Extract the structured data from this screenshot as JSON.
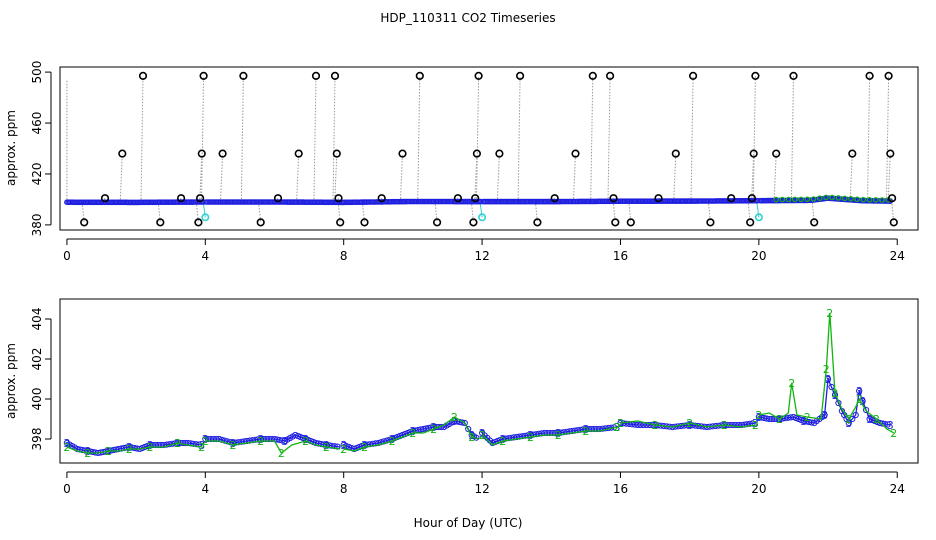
{
  "figure": {
    "title": "HDP_110311  CO2 Timeseries",
    "xlabel": "Hour of Day (UTC)"
  },
  "colors": {
    "frame": "#000000",
    "outlier_marker": "#000000",
    "series_blue": "#1f1fe0",
    "series_green": "#11b511",
    "series_cyan": "#33d0d0",
    "connector": "#9a9a9a"
  },
  "chart_data": [
    {
      "type": "scatter",
      "panel": "top",
      "ylabel": "approx. ppm",
      "xlim": [
        -0.2,
        24.6
      ],
      "ylim": [
        376,
        504
      ],
      "xticks": [
        0,
        4,
        8,
        12,
        16,
        20,
        24
      ],
      "yticks": [
        380,
        420,
        460,
        500
      ],
      "grid": false,
      "baseline": [
        {
          "x": 0,
          "y": 397.8
        },
        {
          "x": 2,
          "y": 397.7
        },
        {
          "x": 4,
          "y": 398.0
        },
        {
          "x": 6,
          "y": 398.0
        },
        {
          "x": 8,
          "y": 397.7
        },
        {
          "x": 10,
          "y": 398.4
        },
        {
          "x": 12,
          "y": 398.3
        },
        {
          "x": 14,
          "y": 398.3
        },
        {
          "x": 16,
          "y": 398.6
        },
        {
          "x": 18,
          "y": 398.7
        },
        {
          "x": 20,
          "y": 399.0
        },
        {
          "x": 21.5,
          "y": 399.3
        },
        {
          "x": 22,
          "y": 401.0
        },
        {
          "x": 23,
          "y": 399.0
        },
        {
          "x": 23.8,
          "y": 398.7
        }
      ],
      "outliers": [
        {
          "x": 0.5,
          "y": 382
        },
        {
          "x": 1.1,
          "y": 401
        },
        {
          "x": 1.6,
          "y": 436
        },
        {
          "x": 2.2,
          "y": 497
        },
        {
          "x": 2.7,
          "y": 382
        },
        {
          "x": 3.3,
          "y": 401
        },
        {
          "x": 3.8,
          "y": 382
        },
        {
          "x": 3.85,
          "y": 401
        },
        {
          "x": 3.9,
          "y": 436
        },
        {
          "x": 3.95,
          "y": 497
        },
        {
          "x": 4.5,
          "y": 436
        },
        {
          "x": 5.1,
          "y": 497
        },
        {
          "x": 5.6,
          "y": 382
        },
        {
          "x": 6.1,
          "y": 401
        },
        {
          "x": 6.7,
          "y": 436
        },
        {
          "x": 7.2,
          "y": 497
        },
        {
          "x": 7.75,
          "y": 497
        },
        {
          "x": 7.8,
          "y": 436
        },
        {
          "x": 7.85,
          "y": 401
        },
        {
          "x": 7.9,
          "y": 382
        },
        {
          "x": 8.6,
          "y": 382
        },
        {
          "x": 9.1,
          "y": 401
        },
        {
          "x": 9.7,
          "y": 436
        },
        {
          "x": 10.2,
          "y": 497
        },
        {
          "x": 10.7,
          "y": 382
        },
        {
          "x": 11.3,
          "y": 401
        },
        {
          "x": 11.75,
          "y": 382
        },
        {
          "x": 11.8,
          "y": 401
        },
        {
          "x": 11.85,
          "y": 436
        },
        {
          "x": 11.9,
          "y": 497
        },
        {
          "x": 12.5,
          "y": 436
        },
        {
          "x": 13.1,
          "y": 497
        },
        {
          "x": 13.6,
          "y": 382
        },
        {
          "x": 14.1,
          "y": 401
        },
        {
          "x": 14.7,
          "y": 436
        },
        {
          "x": 15.2,
          "y": 497
        },
        {
          "x": 15.7,
          "y": 497
        },
        {
          "x": 15.8,
          "y": 401
        },
        {
          "x": 15.85,
          "y": 382
        },
        {
          "x": 16.3,
          "y": 382
        },
        {
          "x": 17.1,
          "y": 401
        },
        {
          "x": 17.6,
          "y": 436
        },
        {
          "x": 18.1,
          "y": 497
        },
        {
          "x": 18.6,
          "y": 382
        },
        {
          "x": 19.2,
          "y": 401
        },
        {
          "x": 19.75,
          "y": 382
        },
        {
          "x": 19.8,
          "y": 401
        },
        {
          "x": 19.85,
          "y": 436
        },
        {
          "x": 19.9,
          "y": 497
        },
        {
          "x": 20.5,
          "y": 436
        },
        {
          "x": 21.0,
          "y": 497
        },
        {
          "x": 21.6,
          "y": 382
        },
        {
          "x": 22.7,
          "y": 436
        },
        {
          "x": 23.2,
          "y": 497
        },
        {
          "x": 23.75,
          "y": 497
        },
        {
          "x": 23.8,
          "y": 436
        },
        {
          "x": 23.85,
          "y": 401
        },
        {
          "x": 23.9,
          "y": 382
        }
      ],
      "cyan_points": [
        {
          "x": 4.0,
          "y": 386
        },
        {
          "x": 12.0,
          "y": 386
        },
        {
          "x": 20.0,
          "y": 386
        }
      ]
    },
    {
      "type": "line",
      "panel": "bottom",
      "ylabel": "approx. ppm",
      "xlim": [
        -0.2,
        24.6
      ],
      "ylim": [
        396.8,
        405.0
      ],
      "xticks": [
        0,
        4,
        8,
        12,
        16,
        20,
        24
      ],
      "yticks": [
        398,
        400,
        402,
        404
      ],
      "grid": false,
      "series": [
        {
          "marker": "3",
          "color": "blue",
          "segments": [
            [
              [
                0.0,
                397.8
              ],
              [
                0.3,
                397.5
              ],
              [
                0.6,
                397.4
              ],
              [
                0.9,
                397.3
              ],
              [
                1.2,
                397.4
              ],
              [
                1.5,
                397.5
              ],
              [
                1.8,
                397.6
              ],
              [
                2.1,
                397.5
              ],
              [
                2.4,
                397.7
              ],
              [
                2.8,
                397.7
              ],
              [
                3.2,
                397.8
              ],
              [
                3.5,
                397.8
              ],
              [
                3.9,
                397.7
              ]
            ],
            [
              [
                4.0,
                398.0
              ],
              [
                4.4,
                398.0
              ],
              [
                4.8,
                397.8
              ],
              [
                5.2,
                397.9
              ],
              [
                5.6,
                398.0
              ],
              [
                6.0,
                398.0
              ],
              [
                6.3,
                397.9
              ],
              [
                6.6,
                398.2
              ],
              [
                6.9,
                398.0
              ],
              [
                7.2,
                397.8
              ],
              [
                7.5,
                397.7
              ],
              [
                7.9,
                397.6
              ]
            ],
            [
              [
                8.0,
                397.7
              ],
              [
                8.3,
                397.5
              ],
              [
                8.6,
                397.7
              ],
              [
                9.0,
                397.8
              ],
              [
                9.4,
                398.0
              ],
              [
                9.7,
                398.2
              ],
              [
                10.0,
                398.4
              ],
              [
                10.3,
                398.5
              ],
              [
                10.6,
                398.6
              ],
              [
                10.9,
                398.6
              ],
              [
                11.2,
                398.9
              ],
              [
                11.5,
                398.8
              ],
              [
                11.7,
                398.2
              ],
              [
                11.9,
                398.0
              ]
            ],
            [
              [
                12.0,
                398.3
              ],
              [
                12.3,
                397.8
              ],
              [
                12.6,
                398.0
              ],
              [
                13.0,
                398.1
              ],
              [
                13.4,
                398.2
              ],
              [
                13.8,
                398.3
              ],
              [
                14.2,
                398.3
              ],
              [
                14.6,
                398.4
              ],
              [
                15.0,
                398.5
              ],
              [
                15.4,
                398.5
              ],
              [
                15.9,
                398.6
              ]
            ],
            [
              [
                16.0,
                398.8
              ],
              [
                16.5,
                398.7
              ],
              [
                17.0,
                398.7
              ],
              [
                17.5,
                398.6
              ],
              [
                18.0,
                398.7
              ],
              [
                18.5,
                398.6
              ],
              [
                19.0,
                398.7
              ],
              [
                19.5,
                398.7
              ],
              [
                19.9,
                398.8
              ]
            ],
            [
              [
                20.0,
                399.1
              ],
              [
                20.3,
                399.0
              ],
              [
                20.6,
                399.0
              ],
              [
                21.0,
                399.1
              ],
              [
                21.3,
                398.9
              ],
              [
                21.6,
                398.8
              ],
              [
                21.9,
                399.2
              ],
              [
                22.0,
                401.0
              ],
              [
                22.2,
                400.2
              ],
              [
                22.4,
                399.4
              ],
              [
                22.6,
                398.8
              ],
              [
                22.8,
                399.2
              ],
              [
                22.9,
                400.4
              ],
              [
                23.0,
                399.9
              ],
              [
                23.2,
                399.0
              ],
              [
                23.5,
                398.8
              ],
              [
                23.8,
                398.7
              ]
            ]
          ]
        },
        {
          "marker": "2",
          "color": "green",
          "segments": [
            [
              [
                0.0,
                397.6
              ],
              [
                0.3,
                397.4
              ],
              [
                0.6,
                397.3
              ],
              [
                0.9,
                397.3
              ],
              [
                1.2,
                397.4
              ],
              [
                1.5,
                397.4
              ],
              [
                1.8,
                397.5
              ],
              [
                2.1,
                397.5
              ],
              [
                2.4,
                397.6
              ],
              [
                2.8,
                397.6
              ],
              [
                3.2,
                397.8
              ],
              [
                3.5,
                397.7
              ],
              [
                3.9,
                397.6
              ]
            ],
            [
              [
                4.0,
                397.9
              ],
              [
                4.4,
                397.9
              ],
              [
                4.8,
                397.7
              ],
              [
                5.2,
                397.8
              ],
              [
                5.6,
                397.9
              ],
              [
                6.0,
                397.9
              ],
              [
                6.2,
                397.3
              ],
              [
                6.5,
                397.7
              ],
              [
                6.9,
                397.9
              ],
              [
                7.2,
                397.7
              ],
              [
                7.5,
                397.6
              ],
              [
                7.9,
                397.5
              ]
            ],
            [
              [
                8.0,
                397.5
              ],
              [
                8.3,
                397.4
              ],
              [
                8.6,
                397.6
              ],
              [
                9.0,
                397.7
              ],
              [
                9.4,
                397.9
              ],
              [
                9.7,
                398.1
              ],
              [
                10.0,
                398.3
              ],
              [
                10.3,
                398.3
              ],
              [
                10.6,
                398.5
              ],
              [
                10.9,
                398.7
              ],
              [
                11.2,
                399.1
              ],
              [
                11.5,
                398.8
              ],
              [
                11.7,
                398.1
              ],
              [
                11.9,
                398.0
              ]
            ],
            [
              [
                12.0,
                398.2
              ],
              [
                12.3,
                397.7
              ],
              [
                12.6,
                397.9
              ],
              [
                13.0,
                398.0
              ],
              [
                13.4,
                398.1
              ],
              [
                13.8,
                398.2
              ],
              [
                14.2,
                398.2
              ],
              [
                14.6,
                398.3
              ],
              [
                15.0,
                398.4
              ],
              [
                15.4,
                398.4
              ],
              [
                15.9,
                398.6
              ]
            ],
            [
              [
                16.0,
                398.8
              ],
              [
                16.5,
                398.9
              ],
              [
                17.0,
                398.7
              ],
              [
                17.5,
                398.6
              ],
              [
                18.0,
                398.8
              ],
              [
                18.5,
                398.6
              ],
              [
                19.0,
                398.7
              ],
              [
                19.5,
                398.6
              ],
              [
                19.9,
                398.7
              ]
            ],
            [
              [
                20.0,
                399.2
              ],
              [
                20.3,
                399.3
              ],
              [
                20.6,
                399.0
              ],
              [
                20.85,
                399.3
              ],
              [
                20.95,
                400.8
              ],
              [
                21.1,
                399.2
              ],
              [
                21.4,
                399.1
              ],
              [
                21.8,
                399.0
              ],
              [
                21.95,
                401.5
              ],
              [
                22.05,
                404.3
              ],
              [
                22.2,
                400.3
              ],
              [
                22.4,
                399.5
              ],
              [
                22.6,
                399.0
              ],
              [
                22.8,
                399.6
              ],
              [
                22.9,
                400.0
              ],
              [
                23.1,
                399.4
              ],
              [
                23.4,
                399.0
              ],
              [
                23.7,
                398.5
              ],
              [
                23.9,
                398.3
              ]
            ]
          ]
        }
      ]
    }
  ]
}
